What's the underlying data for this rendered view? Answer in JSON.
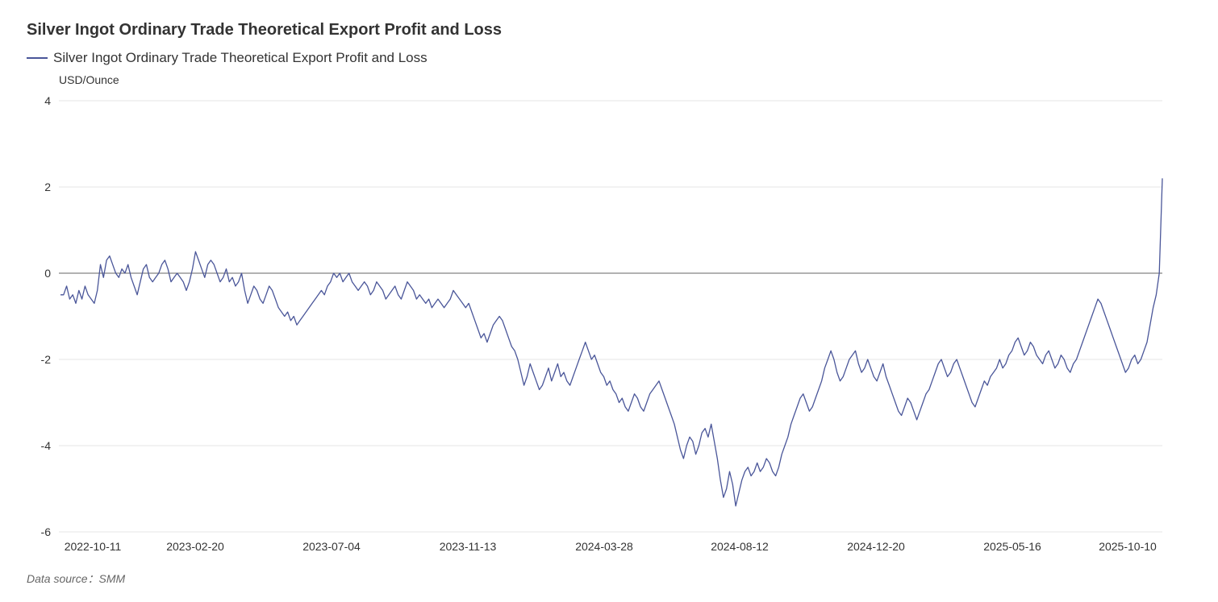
{
  "header": {
    "title": "Silver Ingot Ordinary Trade Theoretical Export Profit and Loss"
  },
  "footer": {
    "source": "Data source：SMM"
  },
  "chart_data": {
    "type": "line",
    "title": "Silver Ingot Ordinary Trade Theoretical Export Profit and Loss",
    "ylabel": "USD/Ounce",
    "xlabel": "",
    "ylim": [
      -6,
      4
    ],
    "yticks": [
      -6,
      -4,
      -2,
      0,
      2,
      4
    ],
    "xticks": [
      "2022-10-11",
      "2023-02-20",
      "2023-07-04",
      "2023-11-13",
      "2024-03-28",
      "2024-08-12",
      "2024-12-20",
      "2025-05-16",
      "2025-10-10"
    ],
    "legend": "top-left",
    "grid": true,
    "colors": {
      "line": "#4a5699",
      "grid": "#e6e6e6",
      "zero": "#666666"
    },
    "series": [
      {
        "name": "Silver Ingot Ordinary Trade Theoretical Export Profit and Loss",
        "x_start": "2022-10-11",
        "x_end": "2025-10-14",
        "values": [
          -0.5,
          -0.5,
          -0.3,
          -0.6,
          -0.5,
          -0.7,
          -0.4,
          -0.6,
          -0.3,
          -0.5,
          -0.6,
          -0.7,
          -0.4,
          0.2,
          -0.1,
          0.3,
          0.4,
          0.2,
          0.0,
          -0.1,
          0.1,
          0.0,
          0.2,
          -0.1,
          -0.3,
          -0.5,
          -0.2,
          0.1,
          0.2,
          -0.1,
          -0.2,
          -0.1,
          0.0,
          0.2,
          0.3,
          0.1,
          -0.2,
          -0.1,
          0.0,
          -0.1,
          -0.2,
          -0.4,
          -0.2,
          0.1,
          0.5,
          0.3,
          0.1,
          -0.1,
          0.2,
          0.3,
          0.2,
          0.0,
          -0.2,
          -0.1,
          0.1,
          -0.2,
          -0.1,
          -0.3,
          -0.2,
          0.0,
          -0.4,
          -0.7,
          -0.5,
          -0.3,
          -0.4,
          -0.6,
          -0.7,
          -0.5,
          -0.3,
          -0.4,
          -0.6,
          -0.8,
          -0.9,
          -1.0,
          -0.9,
          -1.1,
          -1.0,
          -1.2,
          -1.1,
          -1.0,
          -0.9,
          -0.8,
          -0.7,
          -0.6,
          -0.5,
          -0.4,
          -0.5,
          -0.3,
          -0.2,
          0.0,
          -0.1,
          0.0,
          -0.2,
          -0.1,
          0.0,
          -0.2,
          -0.3,
          -0.4,
          -0.3,
          -0.2,
          -0.3,
          -0.5,
          -0.4,
          -0.2,
          -0.3,
          -0.4,
          -0.6,
          -0.5,
          -0.4,
          -0.3,
          -0.5,
          -0.6,
          -0.4,
          -0.2,
          -0.3,
          -0.4,
          -0.6,
          -0.5,
          -0.6,
          -0.7,
          -0.6,
          -0.8,
          -0.7,
          -0.6,
          -0.7,
          -0.8,
          -0.7,
          -0.6,
          -0.4,
          -0.5,
          -0.6,
          -0.7,
          -0.8,
          -0.7,
          -0.9,
          -1.1,
          -1.3,
          -1.5,
          -1.4,
          -1.6,
          -1.4,
          -1.2,
          -1.1,
          -1.0,
          -1.1,
          -1.3,
          -1.5,
          -1.7,
          -1.8,
          -2.0,
          -2.3,
          -2.6,
          -2.4,
          -2.1,
          -2.3,
          -2.5,
          -2.7,
          -2.6,
          -2.4,
          -2.2,
          -2.5,
          -2.3,
          -2.1,
          -2.4,
          -2.3,
          -2.5,
          -2.6,
          -2.4,
          -2.2,
          -2.0,
          -1.8,
          -1.6,
          -1.8,
          -2.0,
          -1.9,
          -2.1,
          -2.3,
          -2.4,
          -2.6,
          -2.5,
          -2.7,
          -2.8,
          -3.0,
          -2.9,
          -3.1,
          -3.2,
          -3.0,
          -2.8,
          -2.9,
          -3.1,
          -3.2,
          -3.0,
          -2.8,
          -2.7,
          -2.6,
          -2.5,
          -2.7,
          -2.9,
          -3.1,
          -3.3,
          -3.5,
          -3.8,
          -4.1,
          -4.3,
          -4.0,
          -3.8,
          -3.9,
          -4.2,
          -4.0,
          -3.7,
          -3.6,
          -3.8,
          -3.5,
          -3.9,
          -4.3,
          -4.8,
          -5.2,
          -5.0,
          -4.6,
          -4.9,
          -5.4,
          -5.1,
          -4.8,
          -4.6,
          -4.5,
          -4.7,
          -4.6,
          -4.4,
          -4.6,
          -4.5,
          -4.3,
          -4.4,
          -4.6,
          -4.7,
          -4.5,
          -4.2,
          -4.0,
          -3.8,
          -3.5,
          -3.3,
          -3.1,
          -2.9,
          -2.8,
          -3.0,
          -3.2,
          -3.1,
          -2.9,
          -2.7,
          -2.5,
          -2.2,
          -2.0,
          -1.8,
          -2.0,
          -2.3,
          -2.5,
          -2.4,
          -2.2,
          -2.0,
          -1.9,
          -1.8,
          -2.1,
          -2.3,
          -2.2,
          -2.0,
          -2.2,
          -2.4,
          -2.5,
          -2.3,
          -2.1,
          -2.4,
          -2.6,
          -2.8,
          -3.0,
          -3.2,
          -3.3,
          -3.1,
          -2.9,
          -3.0,
          -3.2,
          -3.4,
          -3.2,
          -3.0,
          -2.8,
          -2.7,
          -2.5,
          -2.3,
          -2.1,
          -2.0,
          -2.2,
          -2.4,
          -2.3,
          -2.1,
          -2.0,
          -2.2,
          -2.4,
          -2.6,
          -2.8,
          -3.0,
          -3.1,
          -2.9,
          -2.7,
          -2.5,
          -2.6,
          -2.4,
          -2.3,
          -2.2,
          -2.0,
          -2.2,
          -2.1,
          -1.9,
          -1.8,
          -1.6,
          -1.5,
          -1.7,
          -1.9,
          -1.8,
          -1.6,
          -1.7,
          -1.9,
          -2.0,
          -2.1,
          -1.9,
          -1.8,
          -2.0,
          -2.2,
          -2.1,
          -1.9,
          -2.0,
          -2.2,
          -2.3,
          -2.1,
          -2.0,
          -1.8,
          -1.6,
          -1.4,
          -1.2,
          -1.0,
          -0.8,
          -0.6,
          -0.7,
          -0.9,
          -1.1,
          -1.3,
          -1.5,
          -1.7,
          -1.9,
          -2.1,
          -2.3,
          -2.2,
          -2.0,
          -1.9,
          -2.1,
          -2.0,
          -1.8,
          -1.6,
          -1.2,
          -0.8,
          -0.5,
          0.0,
          2.2
        ]
      }
    ]
  }
}
